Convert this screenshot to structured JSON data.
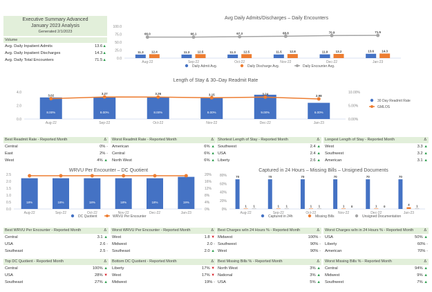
{
  "summary": {
    "title": "Executive Summary Advanced",
    "subtitle": "January 2023 Analysis",
    "generated": "Generated 2/1/2023",
    "section": "Volume",
    "rows": [
      {
        "label": "Avg. Daily Inpatient Admits",
        "value": "13.6",
        "trend": "up"
      },
      {
        "label": "Avg. Daily Inpatient Discharges",
        "value": "14.3",
        "trend": "up"
      },
      {
        "label": "Avg. Daily Total Encounters",
        "value": "71.5",
        "trend": "up"
      }
    ]
  },
  "colors": {
    "blue": "#4472c4",
    "orange": "#ed7d31",
    "gray": "#a5a5a5",
    "header_green": "#e2efda",
    "up": "#2e9e4f",
    "down": "#d9262e"
  },
  "chart_data": [
    {
      "type": "bar+line",
      "title": "Avg Daily Admits/Discharges – Daily Encounters",
      "categories": [
        "Aug-22",
        "Sep-22",
        "Oct-22",
        "Nov-22",
        "Dec-22",
        "Jan-23"
      ],
      "ylim": [
        0,
        100
      ],
      "yticks": [
        "0.0",
        "25.0",
        "50.0",
        "75.0",
        "100.0"
      ],
      "series": [
        {
          "name": "Daily Admit Avg.",
          "kind": "bar",
          "color": "#4472c4",
          "values": [
            11.3,
            11.3,
            11.3,
            11.5,
            11.9,
            13.6
          ]
        },
        {
          "name": "Daily Discharge Avg.",
          "kind": "bar",
          "color": "#ed7d31",
          "values": [
            12.4,
            12.5,
            12.5,
            12.8,
            13.2,
            14.3
          ]
        },
        {
          "name": "Daily Encounter Avg.",
          "kind": "line",
          "color": "#a5a5a5",
          "values": [
            66.0,
            66.1,
            67.3,
            68.8,
            70.9,
            71.5
          ]
        }
      ],
      "legend": "bottom",
      "grid": false
    },
    {
      "type": "bar+line",
      "title": "Length of Stay & 30–Day Readmit Rate",
      "categories": [
        "Aug-22",
        "Sep-22",
        "Oct-22",
        "Nov-22",
        "Dec-22",
        "Jan-23"
      ],
      "ylim": [
        0,
        4
      ],
      "yticks": [
        "0.0",
        "2.0",
        "4.0"
      ],
      "y2lim": [
        0,
        10
      ],
      "y2ticks": [
        "0.00%",
        "5.00%",
        "10.00%"
      ],
      "series": [
        {
          "name": "30 Day Readmit Rate",
          "kind": "bar",
          "axis": "right",
          "color": "#4472c4",
          "values": [
            8,
            8,
            8,
            8,
            9,
            6
          ],
          "labels": [
            "8.00%",
            "8.00%",
            "8.00%",
            "8.00%",
            "9.00%",
            "6.00%"
          ]
        },
        {
          "name": "GMLOS",
          "kind": "line",
          "color": "#ed7d31",
          "values": [
            3.02,
            3.27,
            3.26,
            3.15,
            3.24,
            2.98
          ]
        }
      ],
      "legend": "right",
      "grid": false
    },
    {
      "type": "bar+line",
      "title": "WRVU Per Encounter – DC Quotient",
      "categories": [
        "Aug-22",
        "Sep-22",
        "Oct-22",
        "Nov-22",
        "Dec-22",
        "Jan-23"
      ],
      "ylim": [
        0,
        2.5
      ],
      "yticks": [
        "0.0",
        "0.5",
        "1.0",
        "1.5",
        "2.0",
        "2.5"
      ],
      "y2ticks": [
        "0%",
        "4%",
        "8%",
        "12%",
        "16%",
        "20%"
      ],
      "series": [
        {
          "name": "DC Quotient",
          "kind": "bar",
          "color": "#4472c4",
          "values": [
            2.22,
            2.22,
            2.22,
            2.22,
            2.22,
            2.32
          ],
          "labels": [
            "18%",
            "18%",
            "18%",
            "18%",
            "18%",
            "19%"
          ]
        },
        {
          "name": "WRVU Per Encounter",
          "kind": "line",
          "color": "#ed7d31",
          "values": [
            2.4,
            2.4,
            2.4,
            2.4,
            2.4,
            2.4
          ]
        }
      ],
      "legend": "bottom",
      "grid": false
    },
    {
      "type": "bar",
      "title": "Captured in 24 Hours – Missing Bills – Unsigned Documents",
      "categories": [
        "Aug-22",
        "Sep-22",
        "Oct-22",
        "Nov-22",
        "Dec-22",
        "Jan-23"
      ],
      "ylim": [
        0,
        80
      ],
      "yticks": [
        "0%",
        "20%",
        "40%",
        "60%",
        "80%"
      ],
      "series": [
        {
          "name": "Captured in 24h",
          "kind": "bar",
          "color": "#4472c4",
          "values": [
            70,
            70,
            70,
            70,
            70,
            70
          ]
        },
        {
          "name": "Missing Bills",
          "kind": "bar",
          "color": "#ed7d31",
          "values": [
            1,
            1,
            1,
            1,
            1,
            4
          ]
        },
        {
          "name": "Unsigned Documentation",
          "kind": "bar",
          "color": "#a5a5a5",
          "values": [
            1,
            1,
            1,
            0,
            0,
            1
          ]
        }
      ],
      "legend": "bottom",
      "grid": false
    }
  ],
  "tables": [
    {
      "title": "Best Readmit Rate - Reported Month",
      "delta": "Δ",
      "rows": [
        [
          "Central",
          "0%",
          "flat"
        ],
        [
          "East",
          "2%",
          "flat"
        ],
        [
          "West",
          "4%",
          "up"
        ]
      ]
    },
    {
      "title": "Worst Readmit Rate - Reported Month",
      "delta": "Δ",
      "rows": [
        [
          "American",
          "6%",
          "up"
        ],
        [
          "Central",
          "6%",
          "up"
        ],
        [
          "North West",
          "6%",
          "up"
        ]
      ]
    },
    {
      "title": "Shortest Length of Stay - Reported Month",
      "delta": "Δ",
      "rows": [
        [
          "Southwest",
          "2.4",
          "up"
        ],
        [
          "USA",
          "2.4",
          "up"
        ],
        [
          "Liberty",
          "2.6",
          "up"
        ]
      ]
    },
    {
      "title": "Longest Length of Stay - Reported Month",
      "delta": "Δ",
      "rows": [
        [
          "West",
          "3.3",
          "up"
        ],
        [
          "Southwest",
          "3.2",
          "up"
        ],
        [
          "American",
          "3.1",
          "up"
        ]
      ]
    },
    {
      "title": "Best WRVU Per Encounter - Reported Month",
      "delta": "Δ",
      "rows": [
        [
          "Central",
          "3.1",
          "up"
        ],
        [
          "USA",
          "2.6",
          "flat"
        ],
        [
          "Southeast",
          "2.5",
          "flat"
        ]
      ]
    },
    {
      "title": "Worst WRVU Per Encounter - Reported Month",
      "delta": "Δ",
      "rows": [
        [
          "West",
          "1.8",
          "down"
        ],
        [
          "Midwest",
          "2.0",
          "flat"
        ],
        [
          "Southeast",
          "2.0",
          "up"
        ]
      ]
    },
    {
      "title": "Best Charges w/in 24 Hours % - Reported Month",
      "delta": "Δ",
      "rows": [
        [
          "Midwest",
          "100%",
          "flat"
        ],
        [
          "Southwest",
          "90%",
          "flat"
        ],
        [
          "West",
          "90%",
          "flat"
        ]
      ]
    },
    {
      "title": "Worst Charges w/in in 24 Hours % - Reported Month",
      "delta": "Δ",
      "rows": [
        [
          "USA",
          "50%",
          "up"
        ],
        [
          "Liberty",
          "60%",
          "flat"
        ],
        [
          "American",
          "70%",
          "flat"
        ]
      ]
    },
    {
      "title": "Top DC Quotient - Reported Month",
      "delta": "Δ",
      "rows": [
        [
          "Central",
          "100%",
          "up"
        ],
        [
          "USA",
          "28%",
          "down"
        ],
        [
          "Southeast",
          "27%",
          "up"
        ]
      ]
    },
    {
      "title": "Bottom DC Quotient - Reported Month",
      "delta": "Δ",
      "rows": [
        [
          "Liberty",
          "17%",
          "down"
        ],
        [
          "West",
          "17%",
          "down"
        ],
        [
          "Midwest",
          "19%",
          "flat"
        ]
      ]
    },
    {
      "title": "Best Missing Bills % - Reported Month",
      "delta": "Δ",
      "rows": [
        [
          "North West",
          "3%",
          "up"
        ],
        [
          "National",
          "3%",
          "up"
        ],
        [
          "USA",
          "5%",
          "up"
        ]
      ]
    },
    {
      "title": "Worst Missing Bills % - Reported Month",
      "delta": "Δ",
      "rows": [
        [
          "Central",
          "94%",
          "up"
        ],
        [
          "Midwest",
          "9%",
          "up"
        ],
        [
          "Southwest",
          "7%",
          "up"
        ]
      ]
    }
  ]
}
